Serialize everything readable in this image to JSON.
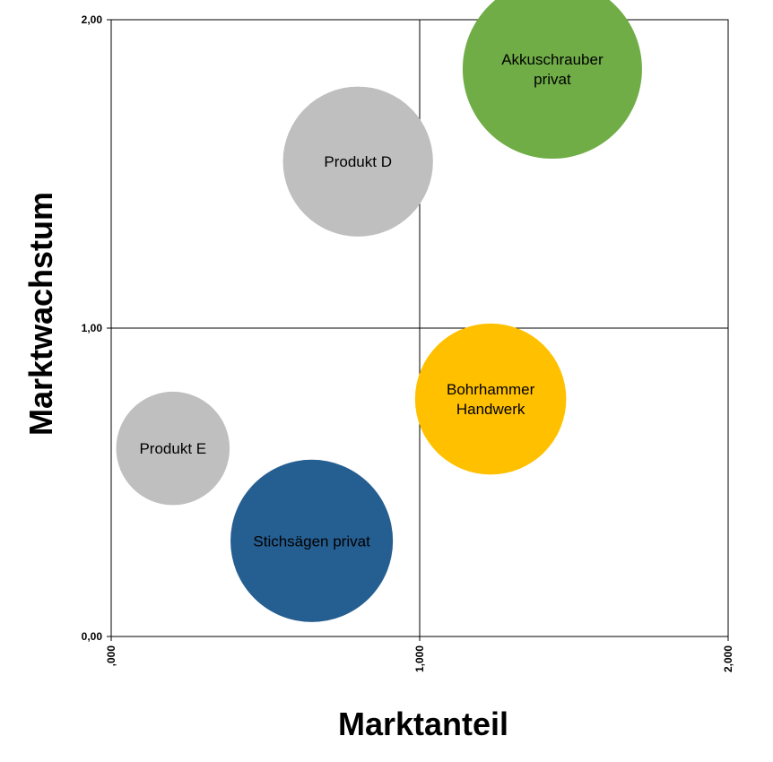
{
  "chart_data": {
    "type": "bubble",
    "xlabel": "Marktanteil",
    "ylabel": "Marktwachstum",
    "xlim": [
      0,
      2
    ],
    "ylim": [
      0,
      2
    ],
    "x_ticks": [
      ",000",
      "1,000",
      "2,000"
    ],
    "y_ticks": [
      "0,00",
      "1,00",
      "2,00"
    ],
    "quadrant_lines": {
      "x": 1.0,
      "y": 1.0
    },
    "series": [
      {
        "label": [
          "Akkuschrauber",
          "privat"
        ],
        "x": 1.43,
        "y": 1.84,
        "size": 1.0,
        "color": "#70ad47",
        "label_color": "#000000"
      },
      {
        "label": [
          "Produkt D"
        ],
        "x": 0.8,
        "y": 1.54,
        "size": 0.7,
        "color": "#bfbfbf",
        "label_color": "#000000"
      },
      {
        "label": [
          "Bohrhammer",
          "Handwerk"
        ],
        "x": 1.23,
        "y": 0.77,
        "size": 0.71,
        "color": "#ffc000",
        "label_color": "#000000"
      },
      {
        "label": [
          "Produkt E"
        ],
        "x": 0.2,
        "y": 0.61,
        "size": 0.4,
        "color": "#bfbfbf",
        "label_color": "#000000"
      },
      {
        "label": [
          "Stichsägen privat"
        ],
        "x": 0.65,
        "y": 0.31,
        "size": 0.82,
        "color": "#255e91",
        "label_color": "#ffffff"
      }
    ]
  }
}
